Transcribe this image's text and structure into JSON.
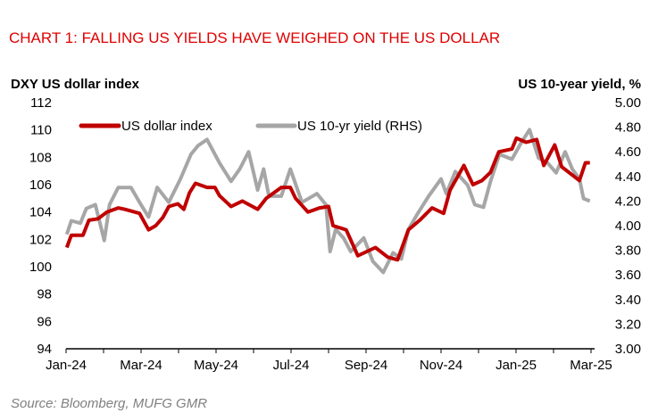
{
  "chart_data": {
    "type": "line",
    "title": "CHART 1: FALLING US YIELDS HAVE WEIGHED ON THE US DOLLAR",
    "ylabel_left": "DXY US dollar index",
    "ylabel_right": "US 10-year yield, %",
    "source": "Source: Bloomberg, MUFG GMR",
    "x_unit": "months since Jan-2024",
    "xlim": [
      0,
      14
    ],
    "x_ticks": [
      {
        "x": 0,
        "label": "Jan-24"
      },
      {
        "x": 2,
        "label": "Mar-24"
      },
      {
        "x": 4,
        "label": "May-24"
      },
      {
        "x": 6,
        "label": "Jul-24"
      },
      {
        "x": 8,
        "label": "Sep-24"
      },
      {
        "x": 10,
        "label": "Nov-24"
      },
      {
        "x": 12,
        "label": "Jan-25"
      },
      {
        "x": 14,
        "label": "Mar-25"
      }
    ],
    "ylim_left": [
      94,
      112
    ],
    "yticks_left": [
      "94",
      "96",
      "98",
      "100",
      "102",
      "104",
      "106",
      "108",
      "110",
      "112"
    ],
    "ylim_right": [
      3.0,
      5.0
    ],
    "yticks_right": [
      "3.00",
      "3.20",
      "3.40",
      "3.60",
      "3.80",
      "4.00",
      "4.20",
      "4.40",
      "4.60",
      "4.80",
      "5.00"
    ],
    "legend_position": "top-left",
    "grid": false,
    "series": [
      {
        "name": "US dollar index",
        "axis": "left",
        "color": "#c00000",
        "points": [
          [
            0.02,
            101.4
          ],
          [
            0.14,
            102.3
          ],
          [
            0.45,
            102.3
          ],
          [
            0.61,
            103.4
          ],
          [
            0.85,
            103.5
          ],
          [
            1.09,
            104.0
          ],
          [
            1.39,
            104.3
          ],
          [
            1.56,
            104.2
          ],
          [
            1.96,
            103.9
          ],
          [
            2.2,
            102.7
          ],
          [
            2.39,
            103.0
          ],
          [
            2.58,
            103.6
          ],
          [
            2.74,
            104.4
          ],
          [
            2.98,
            104.6
          ],
          [
            3.14,
            104.2
          ],
          [
            3.29,
            105.4
          ],
          [
            3.45,
            106.1
          ],
          [
            3.76,
            105.8
          ],
          [
            3.97,
            105.8
          ],
          [
            4.09,
            105.2
          ],
          [
            4.4,
            104.4
          ],
          [
            4.7,
            104.8
          ],
          [
            5.11,
            104.2
          ],
          [
            5.34,
            105.0
          ],
          [
            5.74,
            105.8
          ],
          [
            5.98,
            105.8
          ],
          [
            6.12,
            105.0
          ],
          [
            6.45,
            104.0
          ],
          [
            6.76,
            104.3
          ],
          [
            7.0,
            104.4
          ],
          [
            7.12,
            103.0
          ],
          [
            7.47,
            102.7
          ],
          [
            7.78,
            100.8
          ],
          [
            8.25,
            101.4
          ],
          [
            8.58,
            100.7
          ],
          [
            8.84,
            100.5
          ],
          [
            9.13,
            102.7
          ],
          [
            9.43,
            103.4
          ],
          [
            9.76,
            104.3
          ],
          [
            10.07,
            103.9
          ],
          [
            10.24,
            105.6
          ],
          [
            10.61,
            107.4
          ],
          [
            10.85,
            106.0
          ],
          [
            11.09,
            106.3
          ],
          [
            11.32,
            106.9
          ],
          [
            11.54,
            108.4
          ],
          [
            11.89,
            108.6
          ],
          [
            12.01,
            109.4
          ],
          [
            12.27,
            109.1
          ],
          [
            12.55,
            109.3
          ],
          [
            12.74,
            107.4
          ],
          [
            13.03,
            108.9
          ],
          [
            13.22,
            107.3
          ],
          [
            13.55,
            106.6
          ],
          [
            13.69,
            106.3
          ],
          [
            13.85,
            107.6
          ],
          [
            13.97,
            107.6
          ]
        ]
      },
      {
        "name": "US 10-yr yield (RHS)",
        "axis": "right",
        "color": "#a6a6a6",
        "points": [
          [
            0.02,
            3.93
          ],
          [
            0.14,
            4.04
          ],
          [
            0.38,
            4.02
          ],
          [
            0.54,
            4.14
          ],
          [
            0.78,
            4.17
          ],
          [
            1.02,
            3.88
          ],
          [
            1.16,
            4.17
          ],
          [
            1.39,
            4.31
          ],
          [
            1.73,
            4.31
          ],
          [
            1.96,
            4.19
          ],
          [
            2.2,
            4.07
          ],
          [
            2.43,
            4.31
          ],
          [
            2.74,
            4.19
          ],
          [
            3.05,
            4.38
          ],
          [
            3.33,
            4.58
          ],
          [
            3.52,
            4.65
          ],
          [
            3.76,
            4.7
          ],
          [
            4.09,
            4.51
          ],
          [
            4.4,
            4.36
          ],
          [
            4.63,
            4.46
          ],
          [
            4.87,
            4.6
          ],
          [
            5.11,
            4.29
          ],
          [
            5.27,
            4.46
          ],
          [
            5.41,
            4.24
          ],
          [
            5.74,
            4.24
          ],
          [
            5.98,
            4.46
          ],
          [
            6.29,
            4.19
          ],
          [
            6.69,
            4.26
          ],
          [
            6.93,
            4.17
          ],
          [
            7.04,
            3.79
          ],
          [
            7.19,
            3.97
          ],
          [
            7.4,
            3.9
          ],
          [
            7.59,
            3.79
          ],
          [
            7.94,
            3.9
          ],
          [
            8.18,
            3.71
          ],
          [
            8.46,
            3.62
          ],
          [
            8.72,
            3.78
          ],
          [
            8.94,
            3.73
          ],
          [
            9.13,
            3.97
          ],
          [
            9.36,
            4.09
          ],
          [
            9.67,
            4.24
          ],
          [
            10.0,
            4.38
          ],
          [
            10.14,
            4.26
          ],
          [
            10.38,
            4.44
          ],
          [
            10.71,
            4.33
          ],
          [
            10.9,
            4.17
          ],
          [
            11.13,
            4.15
          ],
          [
            11.32,
            4.36
          ],
          [
            11.56,
            4.58
          ],
          [
            11.89,
            4.54
          ],
          [
            12.13,
            4.67
          ],
          [
            12.36,
            4.78
          ],
          [
            12.6,
            4.55
          ],
          [
            12.84,
            4.51
          ],
          [
            13.07,
            4.43
          ],
          [
            13.31,
            4.6
          ],
          [
            13.5,
            4.46
          ],
          [
            13.69,
            4.38
          ],
          [
            13.8,
            4.22
          ],
          [
            13.97,
            4.2
          ]
        ]
      }
    ]
  }
}
